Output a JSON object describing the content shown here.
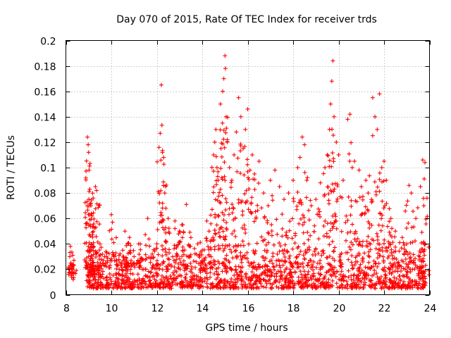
{
  "chart_data": {
    "type": "scatter",
    "title": "Day 070 of 2015, Rate Of TEC Index for receiver trds",
    "xlabel": "GPS time / hours",
    "ylabel": "ROTI / TECUs",
    "xlim": [
      8,
      24
    ],
    "ylim": [
      0,
      0.2
    ],
    "xticks": [
      8,
      10,
      12,
      14,
      16,
      18,
      20,
      22,
      24
    ],
    "xtick_labels": [
      "8",
      "10",
      "12",
      "14",
      "16",
      "18",
      "20",
      "22",
      "24"
    ],
    "yticks": [
      0,
      0.02,
      0.04,
      0.06,
      0.08,
      0.1,
      0.12,
      0.14,
      0.16,
      0.18,
      0.2
    ],
    "ytick_labels": [
      "0",
      "0.02",
      "0.04",
      "0.06",
      "0.08",
      "0.1",
      "0.12",
      "0.14",
      "0.16",
      "0.18",
      "0.2"
    ],
    "grid": true,
    "marker": "+",
    "color": "#ff0000",
    "series": [
      {
        "name": "ROTI",
        "points": [
          [
            8.2,
            0.038
          ],
          [
            8.22,
            0.025
          ],
          [
            8.25,
            0.015
          ],
          [
            8.3,
            0.031
          ],
          [
            8.32,
            0.012
          ],
          [
            8.95,
            0.124
          ],
          [
            8.98,
            0.118
          ],
          [
            9.0,
            0.112
          ],
          [
            9.02,
            0.098
          ],
          [
            9.05,
            0.083
          ],
          [
            9.1,
            0.07
          ],
          [
            9.15,
            0.062
          ],
          [
            9.2,
            0.076
          ],
          [
            9.3,
            0.085
          ],
          [
            9.35,
            0.082
          ],
          [
            9.0,
            0.03
          ],
          [
            9.05,
            0.02
          ],
          [
            9.1,
            0.015
          ],
          [
            9.2,
            0.025
          ],
          [
            9.3,
            0.012
          ],
          [
            9.5,
            0.04
          ],
          [
            9.8,
            0.033
          ],
          [
            10.0,
            0.063
          ],
          [
            10.05,
            0.057
          ],
          [
            10.1,
            0.03
          ],
          [
            10.5,
            0.035
          ],
          [
            10.6,
            0.05
          ],
          [
            10.8,
            0.045
          ],
          [
            11.0,
            0.03
          ],
          [
            11.2,
            0.04
          ],
          [
            11.5,
            0.02
          ],
          [
            11.6,
            0.06
          ],
          [
            11.8,
            0.032
          ],
          [
            12.0,
            0.04
          ],
          [
            12.15,
            0.127
          ],
          [
            12.2,
            0.165
          ],
          [
            12.25,
            0.112
          ],
          [
            12.3,
            0.108
          ],
          [
            12.35,
            0.08
          ],
          [
            12.4,
            0.068
          ],
          [
            12.5,
            0.06
          ],
          [
            12.8,
            0.058
          ],
          [
            13.0,
            0.05
          ],
          [
            13.1,
            0.055
          ],
          [
            13.3,
            0.071
          ],
          [
            13.5,
            0.045
          ],
          [
            13.8,
            0.04
          ],
          [
            14.0,
            0.035
          ],
          [
            14.2,
            0.058
          ],
          [
            14.3,
            0.05
          ],
          [
            14.5,
            0.11
          ],
          [
            14.55,
            0.12
          ],
          [
            14.6,
            0.13
          ],
          [
            14.65,
            0.1
          ],
          [
            14.7,
            0.09
          ],
          [
            14.8,
            0.15
          ],
          [
            14.9,
            0.16
          ],
          [
            14.95,
            0.17
          ],
          [
            15.0,
            0.188
          ],
          [
            15.02,
            0.178
          ],
          [
            15.05,
            0.14
          ],
          [
            15.1,
            0.12
          ],
          [
            15.2,
            0.1
          ],
          [
            15.3,
            0.09
          ],
          [
            15.4,
            0.11
          ],
          [
            15.5,
            0.128
          ],
          [
            15.6,
            0.155
          ],
          [
            15.7,
            0.14
          ],
          [
            15.8,
            0.115
          ],
          [
            15.9,
            0.13
          ],
          [
            16.0,
            0.146
          ],
          [
            16.1,
            0.098
          ],
          [
            16.2,
            0.11
          ],
          [
            16.3,
            0.095
          ],
          [
            16.5,
            0.105
          ],
          [
            16.7,
            0.08
          ],
          [
            16.9,
            0.07
          ],
          [
            17.0,
            0.09
          ],
          [
            17.2,
            0.098
          ],
          [
            17.4,
            0.085
          ],
          [
            17.6,
            0.075
          ],
          [
            17.8,
            0.08
          ],
          [
            18.0,
            0.09
          ],
          [
            18.2,
            0.1
          ],
          [
            18.3,
            0.108
          ],
          [
            18.4,
            0.124
          ],
          [
            18.5,
            0.118
          ],
          [
            18.6,
            0.09
          ],
          [
            18.8,
            0.07
          ],
          [
            19.0,
            0.075
          ],
          [
            19.2,
            0.088
          ],
          [
            19.4,
            0.1
          ],
          [
            19.5,
            0.11
          ],
          [
            19.6,
            0.13
          ],
          [
            19.65,
            0.15
          ],
          [
            19.7,
            0.168
          ],
          [
            19.75,
            0.184
          ],
          [
            19.8,
            0.14
          ],
          [
            19.9,
            0.12
          ],
          [
            20.0,
            0.11
          ],
          [
            20.2,
            0.09
          ],
          [
            20.4,
            0.138
          ],
          [
            20.5,
            0.142
          ],
          [
            20.6,
            0.1
          ],
          [
            20.7,
            0.105
          ],
          [
            20.9,
            0.098
          ],
          [
            21.0,
            0.085
          ],
          [
            21.2,
            0.09
          ],
          [
            21.3,
            0.08
          ],
          [
            21.5,
            0.155
          ],
          [
            21.6,
            0.14
          ],
          [
            21.7,
            0.13
          ],
          [
            21.8,
            0.158
          ],
          [
            21.9,
            0.1
          ],
          [
            22.0,
            0.105
          ],
          [
            22.1,
            0.09
          ],
          [
            22.3,
            0.06
          ],
          [
            22.5,
            0.05
          ],
          [
            22.8,
            0.045
          ],
          [
            23.0,
            0.04
          ],
          [
            23.1,
            0.086
          ],
          [
            23.2,
            0.08
          ],
          [
            23.4,
            0.06
          ],
          [
            23.6,
            0.085
          ],
          [
            23.7,
            0.106
          ],
          [
            23.8,
            0.104
          ],
          [
            23.75,
            0.07
          ],
          [
            23.8,
            0.01
          ]
        ]
      }
    ],
    "bulk_band": {
      "x_range": [
        8.9,
        23.85
      ],
      "y_range": [
        0.005,
        0.035
      ],
      "note": "dense cluster of low ROTI values"
    }
  }
}
